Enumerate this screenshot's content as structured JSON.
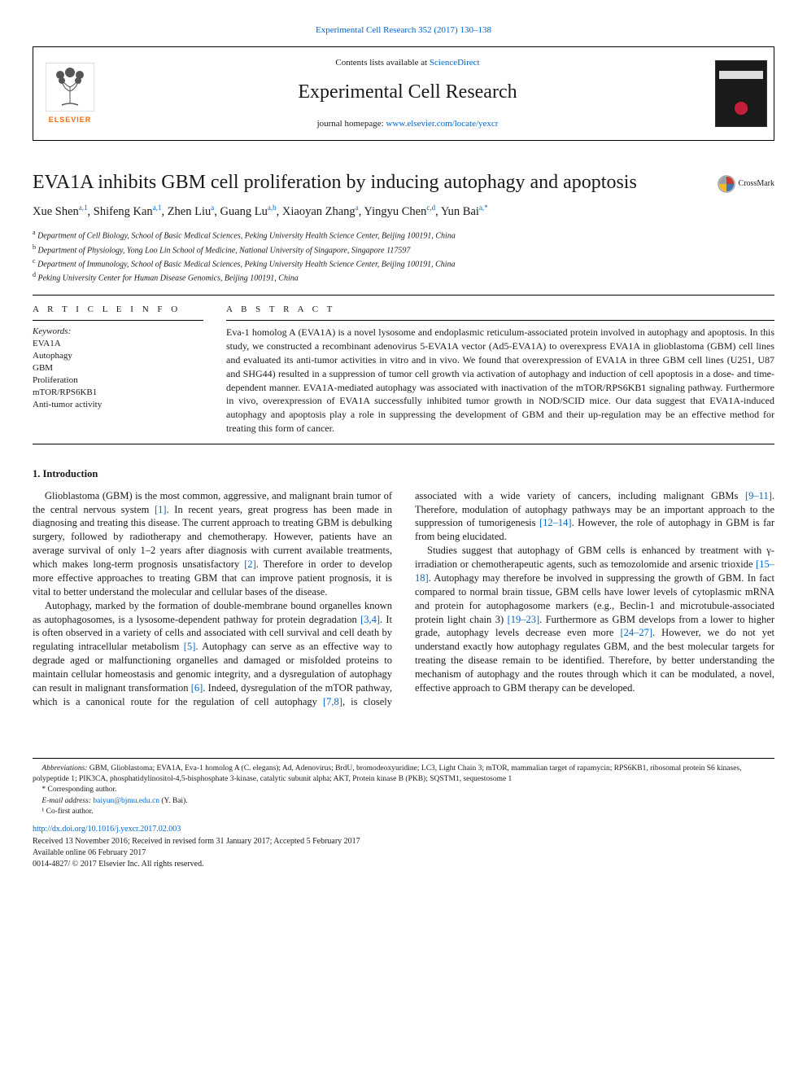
{
  "journalRef": {
    "text": "Experimental Cell Research 352 (2017) 130–138",
    "link_color": "#0066cc"
  },
  "header": {
    "contents_prefix": "Contents lists available at ",
    "contents_link": "ScienceDirect",
    "journal_name": "Experimental Cell Research",
    "homepage_prefix": "journal homepage: ",
    "homepage_url": "www.elsevier.com/locate/yexcr",
    "publisher_label": "ELSEVIER",
    "logo_color": "#ff6600"
  },
  "crossmark": {
    "label": "CrossMark"
  },
  "title": "EVA1A inhibits GBM cell proliferation by inducing autophagy and apoptosis",
  "authors": [
    {
      "name": "Xue Shen",
      "sup": "a,1"
    },
    {
      "name": "Shifeng Kan",
      "sup": "a,1"
    },
    {
      "name": "Zhen Liu",
      "sup": "a"
    },
    {
      "name": "Guang Lu",
      "sup": "a,b"
    },
    {
      "name": "Xiaoyan Zhang",
      "sup": "a"
    },
    {
      "name": "Yingyu Chen",
      "sup": "c,d"
    },
    {
      "name": "Yun Bai",
      "sup": "a,*"
    }
  ],
  "affiliations": [
    {
      "sup": "a",
      "text": "Department of Cell Biology, School of Basic Medical Sciences, Peking University Health Science Center, Beijing 100191, China"
    },
    {
      "sup": "b",
      "text": "Department of Physiology, Yong Loo Lin School of Medicine, National University of Singapore, Singapore 117597"
    },
    {
      "sup": "c",
      "text": "Department of Immunology, School of Basic Medical Sciences, Peking University Health Science Center, Beijing 100191, China"
    },
    {
      "sup": "d",
      "text": "Peking University Center for Human Disease Genomics, Beijing 100191, China"
    }
  ],
  "articleInfo": {
    "heading": "A R T I C L E  I N F O",
    "keywords_label": "Keywords:",
    "keywords": [
      "EVA1A",
      "Autophagy",
      "GBM",
      "Proliferation",
      "mTOR/RPS6KB1",
      "Anti-tumor activity"
    ]
  },
  "abstract": {
    "heading": "A B S T R A C T",
    "text": "Eva-1 homolog A (EVA1A) is a novel lysosome and endoplasmic reticulum-associated protein involved in autophagy and apoptosis. In this study, we constructed a recombinant adenovirus 5-EVA1A vector (Ad5-EVA1A) to overexpress EVA1A in glioblastoma (GBM) cell lines and evaluated its anti-tumor activities in vitro and in vivo. We found that overexpression of EVA1A in three GBM cell lines (U251, U87 and SHG44) resulted in a suppression of tumor cell growth via activation of autophagy and induction of cell apoptosis in a dose- and time-dependent manner. EVA1A-mediated autophagy was associated with inactivation of the mTOR/RPS6KB1 signaling pathway. Furthermore in vivo, overexpression of EVA1A successfully inhibited tumor growth in NOD/SCID mice. Our data suggest that EVA1A-induced autophagy and apoptosis play a role in suppressing the development of GBM and their up-regulation may be an effective method for treating this form of cancer."
  },
  "intro": {
    "heading": "1. Introduction",
    "paras": [
      {
        "pre": "Glioblastoma (GBM) is the most common, aggressive, and malignant brain tumor of the central nervous system ",
        "c1": "[1]",
        "post": ". In recent years, great progress has been made in diagnosing and treating this disease. The current approach to treating GBM is debulking surgery, followed by radiotherapy and chemotherapy. However, patients have an average survival of only 1–2 years after diagnosis with current available treatments, which makes long-term prognosis unsatisfactory ",
        "c2": "[2]",
        "post2": ". Therefore in order to develop more effective approaches to treating GBM that can improve patient prognosis, it is vital to better understand the molecular and cellular bases of the disease."
      },
      {
        "pre": "Autophagy, marked by the formation of double-membrane bound organelles known as autophagosomes, is a lysosome-dependent pathway for protein degradation ",
        "c1": "[3,4]",
        "post": ". It is often observed in a variety of cells and associated with cell survival and cell death by regulating intracellular metabolism ",
        "c2": "[5]",
        "post2": ". Autophagy can serve as an effective way to degrade aged or malfunctioning organelles and damaged or misfolded proteins to maintain cellular homeostasis and genomic integrity, and a dysregulation of autophagy can result in malignant transformation ",
        "c3": "[6]",
        "post3": ". Indeed, dysregulation of the mTOR pathway, which is a canonical route for the regulation of cell autophagy ",
        "c4": "[7,8]",
        "post4": ", is closely associated with a wide variety of cancers, including malignant GBMs ",
        "c5": "[9–11]",
        "post5": ". Therefore, modulation of autophagy pathways may be an important approach to the suppression of tumorigenesis ",
        "c6": "[12–14]",
        "post6": ". However, the role of autophagy in GBM is far from being elucidated."
      },
      {
        "pre": "Studies suggest that autophagy of GBM cells is enhanced by treatment with γ-irradiation or chemotherapeutic agents, such as temozolomide and arsenic trioxide ",
        "c1": "[15–18]",
        "post": ". Autophagy may therefore be involved in suppressing the growth of GBM. In fact compared to normal brain tissue, GBM cells have lower levels of cytoplasmic mRNA and protein for autophagosome markers (e.g., Beclin-1 and microtubule-associated protein light chain 3) ",
        "c2": "[19–23]",
        "post2": ". Furthermore as GBM develops from a lower to higher grade, autophagy levels decrease even more ",
        "c3": "[24–27]",
        "post3": ". However, we do not yet understand exactly how autophagy regulates GBM, and the best molecular targets for treating the disease remain to be identified. Therefore, by better understanding the mechanism of autophagy and the routes through which it can be modulated, a novel, effective approach to GBM therapy can be developed."
      }
    ]
  },
  "footnotes": {
    "abbrev_label": "Abbreviations:",
    "abbrev_text": " GBM, Glioblastoma; EVA1A, Eva-1 homolog A (C. elegans); Ad, Adenovirus; BrdU, bromodeoxyuridine; LC3, Light Chain 3; mTOR, mammalian target of rapamycin; RPS6KB1, ribosomal protein S6 kinases, polypeptide 1; PIK3CA, phosphatidylinositol-4,5-bisphosphate 3-kinase, catalytic subunit alpha; AKT, Protein kinase B (PKB); SQSTM1, sequestosome 1",
    "corr": "* Corresponding author.",
    "email_label": "E-mail address: ",
    "email": "baiyun@bjmu.edu.cn",
    "email_who": " (Y. Bai).",
    "cofirst": "¹ Co-first author.",
    "doi": "http://dx.doi.org/10.1016/j.yexcr.2017.02.003",
    "received": "Received 13 November 2016; Received in revised form 31 January 2017; Accepted 5 February 2017",
    "available": "Available online 06 February 2017",
    "copyright": "0014-4827/ © 2017 Elsevier Inc. All rights reserved."
  },
  "colors": {
    "link": "#0066cc",
    "text": "#1a1a1a",
    "elsevier_orange": "#ff6600",
    "crossmark_red": "#c8392e",
    "crossmark_yellow": "#f2b632",
    "crossmark_blue": "#3e78b2",
    "crossmark_grey": "#9aa0a6"
  }
}
